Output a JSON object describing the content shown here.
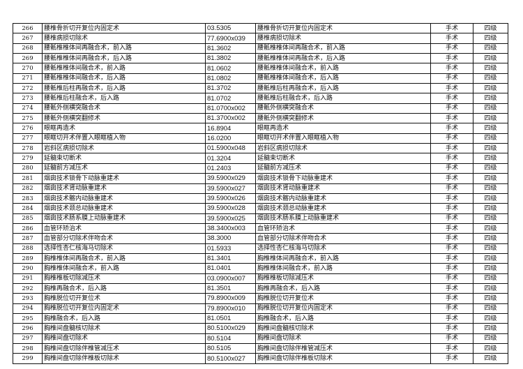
{
  "table": {
    "rows": [
      [
        "266",
        "腰椎骨折切开复位内固定术",
        "03.5305",
        "腰椎骨折切开复位内固定术",
        "手术",
        "四级"
      ],
      [
        "267",
        "腰椎病损切除术",
        "77.6900x039",
        "腰椎病损切除术",
        "手术",
        "四级"
      ],
      [
        "268",
        "腰骶椎椎体间再融合术，前入路",
        "81.3602",
        "腰骶椎椎体间再融合术，前入路",
        "手术",
        "四级"
      ],
      [
        "269",
        "腰骶椎椎体间再融合术，后入路",
        "81.3802",
        "腰骶椎椎体间再融合术，后入路",
        "手术",
        "四级"
      ],
      [
        "270",
        "腰骶椎椎体间融合术，前入路",
        "81.0602",
        "腰骶椎椎体间融合术，前入路",
        "手术",
        "四级"
      ],
      [
        "271",
        "腰骶椎椎体间融合术，后入路",
        "81.0802",
        "腰骶椎椎体间融合术，后入路",
        "手术",
        "四级"
      ],
      [
        "272",
        "腰骶椎后柱再融合术，后入路",
        "81.3702",
        "腰骶椎后柱再融合术，后入路",
        "手术",
        "四级"
      ],
      [
        "273",
        "腰骶椎后柱融合术，后入路",
        "81.0702",
        "腰骶椎后柱融合术，后入路",
        "手术",
        "四级"
      ],
      [
        "274",
        "腰骶外侧横突融合术",
        "81.0700x002",
        "腰骶外侧横突融合术",
        "手术",
        "四级"
      ],
      [
        "275",
        "腰骶外侧横突翻修术",
        "81.3700x002",
        "腰骶外侧横突翻修术",
        "手术",
        "四级"
      ],
      [
        "276",
        "眼眶再造术",
        "16.8904",
        "眼眶再造术",
        "手术",
        "四级"
      ],
      [
        "277",
        "眼眶切开术伴置入眼眶植入物",
        "16.0200",
        "眼眶切开术伴置入眼眶植入物",
        "手术",
        "四级"
      ],
      [
        "278",
        "岩斜区病损切除术",
        "01.5900x048",
        "岩斜区病损切除术",
        "手术",
        "四级"
      ],
      [
        "279",
        "延髓束切断术",
        "01.3204",
        "延髓束切断术",
        "手术",
        "四级"
      ],
      [
        "280",
        "延髓前方减压术",
        "01.2403",
        "延髓前方减压术",
        "手术",
        "四级"
      ],
      [
        "281",
        "烟囱技术锁骨下动脉重建术",
        "39.5900x029",
        "烟囱技术锁骨下动脉重建术",
        "手术",
        "四级"
      ],
      [
        "282",
        "烟囱技术肾动脉重建术",
        "39.5900x027",
        "烟囱技术肾动脉重建术",
        "手术",
        "四级"
      ],
      [
        "283",
        "烟囱技术髂内动脉重建术",
        "39.5900x026",
        "烟囱技术髂内动脉重建术",
        "手术",
        "四级"
      ],
      [
        "284",
        "烟囱技术颈总动脉重建术",
        "39.5900x028",
        "烟囱技术颈总动脉重建术",
        "手术",
        "四级"
      ],
      [
        "285",
        "烟囱技术肠系膜上动脉重建术",
        "39.5900x025",
        "烟囱技术肠系膜上动脉重建术",
        "手术",
        "四级"
      ],
      [
        "286",
        "血管环矫治术",
        "38.3400x003",
        "血管环矫治术",
        "手术",
        "四级"
      ],
      [
        "287",
        "血管部分切除术伴吻合术",
        "38.3000",
        "血管部分切除术伴吻合术",
        "手术",
        "四级"
      ],
      [
        "288",
        "选择性杏仁核海马切除术",
        "01.5933",
        "选择性杏仁核海马切除术",
        "手术",
        "四级"
      ],
      [
        "289",
        "胸椎椎体间再融合术，前入路",
        "81.3401",
        "胸椎椎体间再融合术，前入路",
        "手术",
        "四级"
      ],
      [
        "290",
        "胸椎椎体间融合术，前入路",
        "81.0401",
        "胸椎椎体间融合术，前入路",
        "手术",
        "四级"
      ],
      [
        "291",
        "胸椎椎板切除减压术",
        "03.0900x007",
        "胸椎椎板切除减压术",
        "手术",
        "四级"
      ],
      [
        "292",
        "胸椎再融合术，后入路",
        "81.3501",
        "胸椎再融合术，后入路",
        "手术",
        "四级"
      ],
      [
        "293",
        "胸椎脱位切开复位术",
        "79.8900x009",
        "胸椎脱位切开复位术",
        "手术",
        "四级"
      ],
      [
        "294",
        "胸椎脱位切开复位内固定术",
        "79.8900x010",
        "胸椎脱位切开复位内固定术",
        "手术",
        "四级"
      ],
      [
        "295",
        "胸椎融合术，后入路",
        "81.0501",
        "胸椎融合术，后入路",
        "手术",
        "四级"
      ],
      [
        "296",
        "胸椎间盘髓核切除术",
        "80.5100x029",
        "胸椎间盘髓核切除术",
        "手术",
        "四级"
      ],
      [
        "297",
        "胸椎间盘切除术",
        "80.5104",
        "胸椎间盘切除术",
        "手术",
        "四级"
      ],
      [
        "298",
        "胸椎间盘切除伴椎管减压术",
        "80.5105",
        "胸椎间盘切除伴椎管减压术",
        "手术",
        "四级"
      ],
      [
        "299",
        "胸椎间盘切除伴椎板切除术",
        "80.5100x027",
        "胸椎间盘切除伴椎板切除术",
        "手术",
        "四级"
      ]
    ]
  }
}
